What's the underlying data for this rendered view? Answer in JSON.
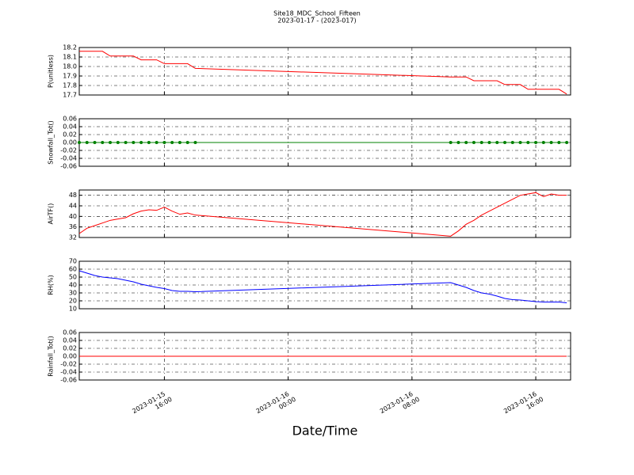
{
  "title": "Site18_MDC_School_Fifteen",
  "subtitle": "2023-01-17 - (2023-017)",
  "xlabel": "Date/Time",
  "xlim": [
    "2023-01-15 10:30",
    "2023-01-16 18:15"
  ],
  "xticks": [
    {
      "value": "2023-01-15 16:00",
      "label": [
        "2023-01-15",
        "16:00"
      ]
    },
    {
      "value": "2023-01-16 00:00",
      "label": [
        "2023-01-16",
        "00:00"
      ]
    },
    {
      "value": "2023-01-16 08:00",
      "label": [
        "2023-01-16",
        "08:00"
      ]
    },
    {
      "value": "2023-01-16 16:00",
      "label": [
        "2023-01-16",
        "16:00"
      ]
    }
  ],
  "grid": true,
  "x": [
    "2023-01-15 10:30",
    "2023-01-15 11:00",
    "2023-01-15 11:30",
    "2023-01-15 12:00",
    "2023-01-15 12:30",
    "2023-01-15 13:00",
    "2023-01-15 13:30",
    "2023-01-15 14:00",
    "2023-01-15 14:30",
    "2023-01-15 15:00",
    "2023-01-15 15:30",
    "2023-01-15 16:00",
    "2023-01-15 16:30",
    "2023-01-15 17:00",
    "2023-01-15 17:30",
    "2023-01-15 18:00",
    "2023-01-16 10:30",
    "2023-01-16 11:00",
    "2023-01-16 11:30",
    "2023-01-16 12:00",
    "2023-01-16 12:30",
    "2023-01-16 13:00",
    "2023-01-16 13:30",
    "2023-01-16 14:00",
    "2023-01-16 14:30",
    "2023-01-16 15:00",
    "2023-01-16 15:30",
    "2023-01-16 16:00",
    "2023-01-16 16:30",
    "2023-01-16 17:00",
    "2023-01-16 17:30",
    "2023-01-16 18:00"
  ],
  "chart_data": [
    {
      "type": "line",
      "ylabel": "P(unitless)",
      "color": "#ff0000",
      "ylim": [
        17.7,
        18.2
      ],
      "yticks": [
        17.7,
        17.8,
        17.9,
        {
          "value": 18,
          "label": "18.0"
        },
        18.1,
        18.2
      ],
      "values": [
        18.16,
        18.16,
        18.16,
        18.16,
        18.11,
        18.11,
        18.11,
        18.11,
        18.07,
        18.07,
        18.07,
        18.03,
        18.03,
        18.03,
        18.03,
        17.98,
        17.89,
        17.89,
        17.89,
        17.85,
        17.85,
        17.85,
        17.85,
        17.81,
        17.81,
        17.81,
        17.76,
        17.76,
        17.76,
        17.76,
        17.76,
        17.71
      ]
    },
    {
      "type": "line",
      "ylabel": "Snowfall_Tot()",
      "color": "#008000",
      "marker": "o",
      "ylim": [
        -0.06,
        0.06
      ],
      "yticks": [
        -0.06,
        -0.04,
        -0.02,
        {
          "value": 0,
          "label": "0.00"
        },
        0.02,
        0.04,
        0.06
      ],
      "values": [
        0,
        0,
        0,
        0,
        0,
        0,
        0,
        0,
        0,
        0,
        0,
        0,
        0,
        0,
        0,
        0,
        0,
        0,
        0,
        0,
        0,
        0,
        0,
        0,
        0,
        0,
        0,
        0,
        0,
        0,
        0,
        0
      ]
    },
    {
      "type": "line",
      "ylabel": "AirTF()",
      "color": "#ff0000",
      "ylim": [
        32,
        50
      ],
      "yticks": [
        32,
        36,
        40,
        44,
        48
      ],
      "values": [
        33.5,
        35.5,
        36.5,
        37.5,
        38.5,
        39,
        39.5,
        41,
        42,
        42.5,
        42.3,
        43.5,
        42,
        40.8,
        41.3,
        40.5,
        32.5,
        34.5,
        37,
        38.5,
        40.5,
        42,
        43.5,
        45,
        46.5,
        48,
        48.5,
        49,
        47.5,
        48.5,
        48,
        48
      ]
    },
    {
      "type": "line",
      "ylabel": "RH(%)",
      "color": "#0000ff",
      "ylim": [
        10,
        70
      ],
      "yticks": [
        10,
        20,
        30,
        40,
        50,
        60,
        70
      ],
      "values": [
        58,
        55,
        52,
        50,
        49,
        48,
        46,
        44,
        41,
        39,
        37,
        35.5,
        33,
        32,
        32,
        31.5,
        43,
        40,
        37,
        33,
        30,
        28.5,
        26,
        23,
        21.5,
        21,
        20,
        19,
        18.5,
        18.5,
        18.5,
        17.5
      ]
    },
    {
      "type": "line",
      "ylabel": "Rainfall_Tot()",
      "color": "#ff0000",
      "ylim": [
        -0.06,
        0.06
      ],
      "yticks": [
        -0.06,
        -0.04,
        -0.02,
        {
          "value": 0,
          "label": "0.00"
        },
        0.02,
        0.04,
        0.06
      ],
      "values": [
        0,
        0,
        0,
        0,
        0,
        0,
        0,
        0,
        0,
        0,
        0,
        0,
        0,
        0,
        0,
        0,
        0,
        0,
        0,
        0,
        0,
        0,
        0,
        0,
        0,
        0,
        0,
        0,
        0,
        0,
        0,
        0
      ]
    }
  ]
}
